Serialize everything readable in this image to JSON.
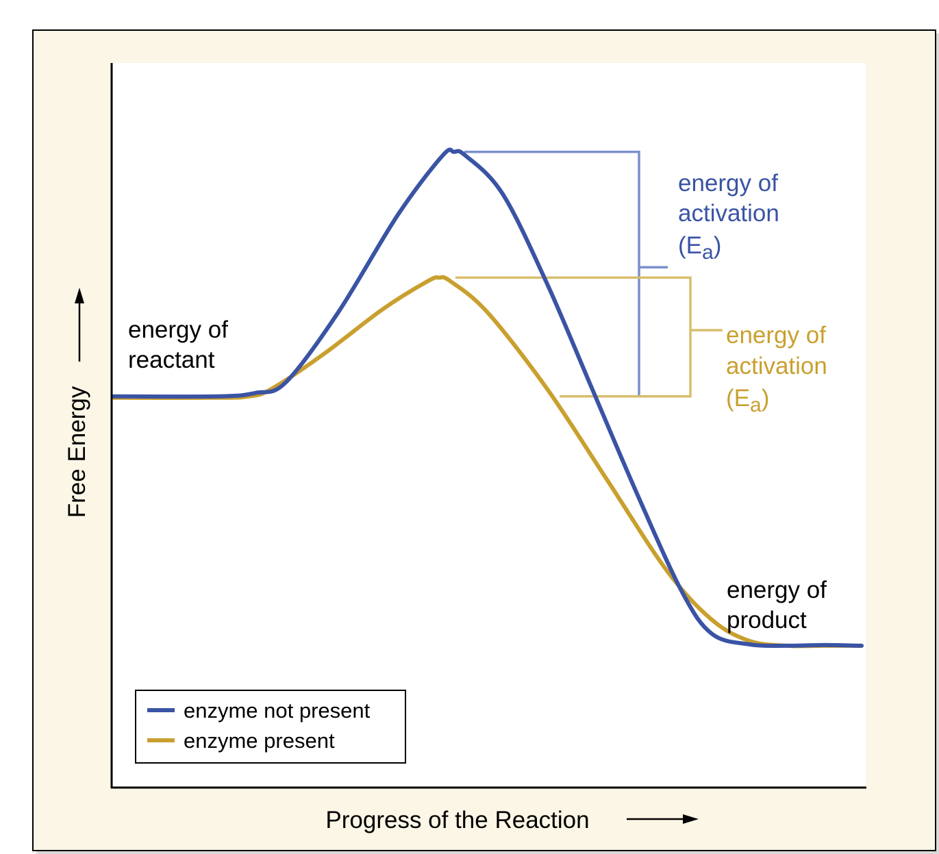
{
  "chart_data": {
    "type": "line",
    "xlabel": "Progress of the Reaction",
    "ylabel": "Free Energy",
    "xlim": [
      0,
      100
    ],
    "ylim": [
      0,
      100
    ],
    "grid": false,
    "legend_position": "bottom-left",
    "series": [
      {
        "name": "enzyme not present",
        "color": "#3a53a4",
        "x": [
          0,
          14,
          19,
          23,
          30,
          38,
          44,
          45.5,
          47,
          52,
          58,
          64,
          70,
          76,
          80,
          85,
          90,
          95,
          100
        ],
        "values": [
          56,
          56,
          56.5,
          58,
          68,
          82,
          90.5,
          91,
          90.5,
          85,
          72,
          57,
          42,
          28,
          22,
          20.5,
          20.3,
          20.4,
          20.3
        ]
      },
      {
        "name": "enzyme present",
        "color": "#c9a02f",
        "x": [
          0,
          14,
          18,
          21,
          28,
          36,
          42,
          43.5,
          45,
          50,
          58,
          66,
          74,
          80,
          85,
          90,
          95,
          100
        ],
        "values": [
          55.8,
          55.8,
          56,
          57,
          62,
          68.5,
          72.5,
          73,
          72.5,
          68,
          57,
          44,
          31,
          24,
          21,
          20.3,
          20.3,
          20.3
        ]
      }
    ],
    "annotations": [
      {
        "text": "energy of",
        "color": "#000000"
      },
      {
        "text": "reactant",
        "color": "#000000"
      },
      {
        "text": "energy of",
        "color": "#000000"
      },
      {
        "text": "product",
        "color": "#000000"
      }
    ],
    "activation_labels": [
      {
        "line1": "energy of",
        "line2": "activation",
        "prefix": "(E",
        "sub": "a",
        "suffix": ")",
        "color": "#3a53a4",
        "top_value": 91,
        "bottom_value": 56
      },
      {
        "line1": "energy of",
        "line2": "activation",
        "prefix": "(E",
        "sub": "a",
        "suffix": ")",
        "color": "#c9a02f",
        "top_value": 73,
        "bottom_value": 56
      }
    ]
  },
  "colors": {
    "panel_background": "#fbf6e6",
    "plot_background": "#ffffff",
    "blue_bracket": "#7d8fcc",
    "gold_bracket": "#d8be6c"
  }
}
